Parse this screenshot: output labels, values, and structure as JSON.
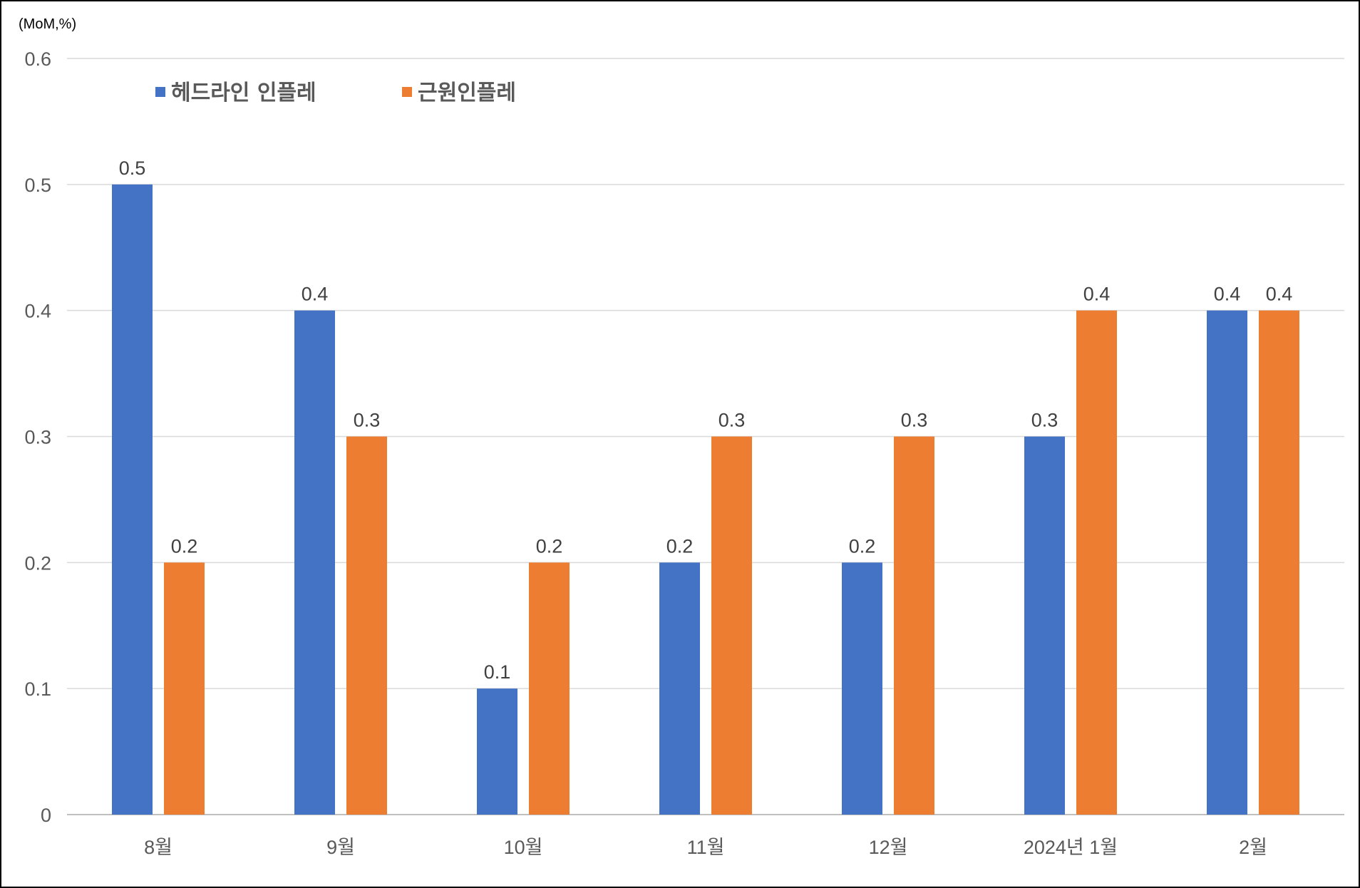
{
  "chart_data": {
    "type": "bar",
    "unit_label": "(MoM,%)",
    "categories": [
      "8월",
      "9월",
      "10월",
      "11월",
      "12월",
      "2024년 1월",
      "2월"
    ],
    "series": [
      {
        "name": "헤드라인 인플레",
        "color": "#4472C4",
        "values": [
          0.5,
          0.4,
          0.1,
          0.2,
          0.2,
          0.3,
          0.4
        ]
      },
      {
        "name": "근원인플레",
        "color": "#ED7D31",
        "values": [
          0.2,
          0.3,
          0.2,
          0.3,
          0.3,
          0.4,
          0.4
        ]
      }
    ],
    "ylim": [
      0,
      0.6
    ],
    "yticks": [
      "0",
      "0.1",
      "0.2",
      "0.3",
      "0.4",
      "0.5",
      "0.6"
    ],
    "grid": true,
    "legend_position": "top-left",
    "data_labels": true
  }
}
